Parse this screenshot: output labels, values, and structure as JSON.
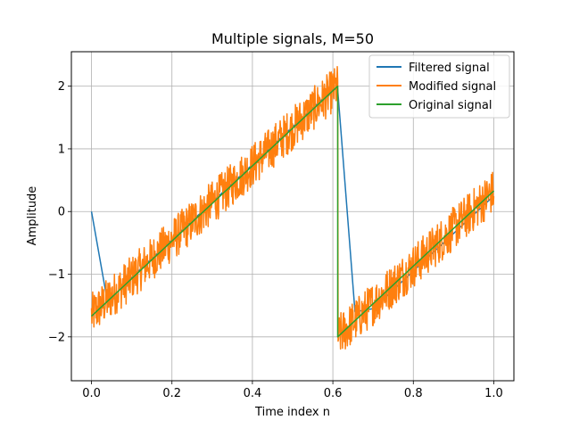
{
  "chart_data": {
    "type": "line",
    "title": "Multiple signals, M=50",
    "xlabel": "Time index n",
    "ylabel": "Amplitude",
    "xlim": [
      -0.05,
      1.05
    ],
    "ylim": [
      -2.7,
      2.55
    ],
    "xticks": [
      0.0,
      0.2,
      0.4,
      0.6,
      0.8,
      1.0
    ],
    "xtick_labels": [
      "0.0",
      "0.2",
      "0.4",
      "0.6",
      "0.8",
      "1.0"
    ],
    "yticks": [
      -2,
      -1,
      0,
      1,
      2
    ],
    "ytick_labels": [
      "−2",
      "−1",
      "0",
      "1",
      "2"
    ],
    "grid": true,
    "legend_position": "top-right",
    "series": [
      {
        "name": "Filtered signal",
        "color": "#1f77b4",
        "x": [
          0.0,
          0.04,
          0.1,
          0.2,
          0.3,
          0.4,
          0.5,
          0.6,
          0.612,
          0.655,
          0.7,
          0.8,
          0.9,
          1.0
        ],
        "y": [
          0.0,
          -1.45,
          -1.05,
          -0.45,
          0.15,
          0.75,
          1.35,
          1.95,
          1.95,
          -1.6,
          -1.55,
          -0.95,
          -0.35,
          0.25
        ]
      },
      {
        "name": "Modified signal",
        "color": "#ff7f0e",
        "x": [
          0.0,
          0.05,
          0.1,
          0.15,
          0.2,
          0.25,
          0.3,
          0.35,
          0.4,
          0.45,
          0.5,
          0.55,
          0.6,
          0.612,
          0.62,
          0.65,
          0.7,
          0.75,
          0.8,
          0.85,
          0.9,
          0.95,
          1.0
        ],
        "y": [
          -1.65,
          -1.35,
          -1.05,
          -0.75,
          -0.45,
          -0.15,
          0.15,
          0.45,
          0.75,
          1.05,
          1.35,
          1.65,
          1.95,
          2.02,
          -2.0,
          -1.75,
          -1.45,
          -1.15,
          -0.85,
          -0.55,
          -0.25,
          0.05,
          0.33
        ],
        "noise_amplitude": 0.35
      },
      {
        "name": "Original signal",
        "color": "#2ca02c",
        "x": [
          0.0,
          0.612,
          0.612,
          1.0
        ],
        "y": [
          -1.67,
          2.0,
          -2.0,
          0.33
        ]
      }
    ]
  }
}
